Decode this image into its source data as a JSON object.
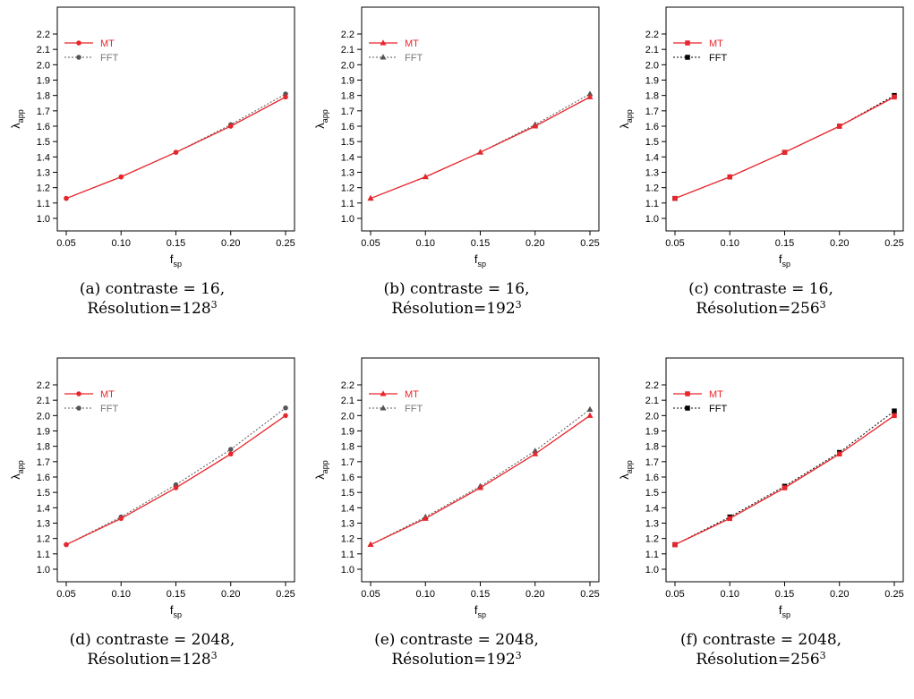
{
  "chart_data": [
    {
      "type": "line",
      "panel_label": "(a)",
      "caption": {
        "line1": "contraste = 16,",
        "line2": "Résolution=128",
        "exponent": "3"
      },
      "xlabel": "f",
      "xlabel_sub": "sp",
      "ylabel": "λ",
      "ylabel_sub": "app",
      "x": [
        0.05,
        0.1,
        0.15,
        0.2,
        0.25
      ],
      "x_ticks": [
        "0.05",
        "0.10",
        "0.15",
        "0.20",
        "0.25"
      ],
      "y_ticks": [
        "1.0",
        "1.1",
        "1.2",
        "1.3",
        "1.4",
        "1.5",
        "1.6",
        "1.7",
        "1.8",
        "1.9",
        "2.0",
        "2.1",
        "2.2"
      ],
      "xlim": [
        0.05,
        0.25
      ],
      "ylim": [
        1.0,
        2.2
      ],
      "marker": "circle",
      "legend_position": "top-left",
      "grid": false,
      "series": [
        {
          "name": "MT",
          "values": [
            1.13,
            1.27,
            1.43,
            1.6,
            1.79
          ],
          "color": "#e8252b",
          "dash": "solid",
          "label_color": "#e8252b"
        },
        {
          "name": "FFT",
          "values": [
            1.13,
            1.27,
            1.43,
            1.61,
            1.81
          ],
          "color": "#555555",
          "dash": "dotted",
          "label_color": "#777777"
        }
      ]
    },
    {
      "type": "line",
      "panel_label": "(b)",
      "caption": {
        "line1": "contraste = 16,",
        "line2": "Résolution=192",
        "exponent": "3"
      },
      "xlabel": "f",
      "xlabel_sub": "sp",
      "ylabel": "λ",
      "ylabel_sub": "app",
      "x": [
        0.05,
        0.1,
        0.15,
        0.2,
        0.25
      ],
      "x_ticks": [
        "0.05",
        "0.10",
        "0.15",
        "0.20",
        "0.25"
      ],
      "y_ticks": [
        "1.0",
        "1.1",
        "1.2",
        "1.3",
        "1.4",
        "1.5",
        "1.6",
        "1.7",
        "1.8",
        "1.9",
        "2.0",
        "2.1",
        "2.2"
      ],
      "xlim": [
        0.05,
        0.25
      ],
      "ylim": [
        1.0,
        2.2
      ],
      "marker": "triangle",
      "legend_position": "top-left",
      "grid": false,
      "series": [
        {
          "name": "MT",
          "values": [
            1.13,
            1.27,
            1.43,
            1.6,
            1.79
          ],
          "color": "#e8252b",
          "dash": "solid",
          "label_color": "#e8252b"
        },
        {
          "name": "FFT",
          "values": [
            1.13,
            1.27,
            1.43,
            1.61,
            1.81
          ],
          "color": "#555555",
          "dash": "dotted",
          "label_color": "#777777"
        }
      ]
    },
    {
      "type": "line",
      "panel_label": "(c)",
      "caption": {
        "line1": "contraste = 16,",
        "line2": "Résolution=256",
        "exponent": "3"
      },
      "xlabel": "f",
      "xlabel_sub": "sp",
      "ylabel": "λ",
      "ylabel_sub": "app",
      "x": [
        0.05,
        0.1,
        0.15,
        0.2,
        0.25
      ],
      "x_ticks": [
        "0.05",
        "0.10",
        "0.15",
        "0.20",
        "0.25"
      ],
      "y_ticks": [
        "1.0",
        "1.1",
        "1.2",
        "1.3",
        "1.4",
        "1.5",
        "1.6",
        "1.7",
        "1.8",
        "1.9",
        "2.0",
        "2.1",
        "2.2"
      ],
      "xlim": [
        0.05,
        0.25
      ],
      "ylim": [
        1.0,
        2.2
      ],
      "marker": "square",
      "legend_position": "top-left",
      "grid": false,
      "series": [
        {
          "name": "MT",
          "values": [
            1.13,
            1.27,
            1.43,
            1.6,
            1.79
          ],
          "color": "#e8252b",
          "dash": "solid",
          "label_color": "#e8252b"
        },
        {
          "name": "FFT",
          "values": [
            1.13,
            1.27,
            1.43,
            1.6,
            1.8
          ],
          "color": "#000000",
          "dash": "dotted",
          "label_color": "#000000"
        }
      ]
    },
    {
      "type": "line",
      "panel_label": "(d)",
      "caption": {
        "line1": "contraste = 2048,",
        "line2": "Résolution=128",
        "exponent": "3"
      },
      "xlabel": "f",
      "xlabel_sub": "sp",
      "ylabel": "λ",
      "ylabel_sub": "app",
      "x": [
        0.05,
        0.1,
        0.15,
        0.2,
        0.25
      ],
      "x_ticks": [
        "0.05",
        "0.10",
        "0.15",
        "0.20",
        "0.25"
      ],
      "y_ticks": [
        "1.0",
        "1.1",
        "1.2",
        "1.3",
        "1.4",
        "1.5",
        "1.6",
        "1.7",
        "1.8",
        "1.9",
        "2.0",
        "2.1",
        "2.2"
      ],
      "xlim": [
        0.05,
        0.25
      ],
      "ylim": [
        1.0,
        2.2
      ],
      "marker": "circle",
      "legend_position": "top-left",
      "grid": false,
      "series": [
        {
          "name": "MT",
          "values": [
            1.16,
            1.33,
            1.53,
            1.75,
            2.0
          ],
          "color": "#e8252b",
          "dash": "solid",
          "label_color": "#e8252b"
        },
        {
          "name": "FFT",
          "values": [
            1.16,
            1.34,
            1.55,
            1.78,
            2.05
          ],
          "color": "#555555",
          "dash": "dotted",
          "label_color": "#777777"
        }
      ]
    },
    {
      "type": "line",
      "panel_label": "(e)",
      "caption": {
        "line1": "contraste = 2048,",
        "line2": "Résolution=192",
        "exponent": "3"
      },
      "xlabel": "f",
      "xlabel_sub": "sp",
      "ylabel": "λ",
      "ylabel_sub": "app",
      "x": [
        0.05,
        0.1,
        0.15,
        0.2,
        0.25
      ],
      "x_ticks": [
        "0.05",
        "0.10",
        "0.15",
        "0.20",
        "0.25"
      ],
      "y_ticks": [
        "1.0",
        "1.1",
        "1.2",
        "1.3",
        "1.4",
        "1.5",
        "1.6",
        "1.7",
        "1.8",
        "1.9",
        "2.0",
        "2.1",
        "2.2"
      ],
      "xlim": [
        0.05,
        0.25
      ],
      "ylim": [
        1.0,
        2.2
      ],
      "marker": "triangle",
      "legend_position": "top-left",
      "grid": false,
      "series": [
        {
          "name": "MT",
          "values": [
            1.16,
            1.33,
            1.53,
            1.75,
            2.0
          ],
          "color": "#e8252b",
          "dash": "solid",
          "label_color": "#e8252b"
        },
        {
          "name": "FFT",
          "values": [
            1.16,
            1.34,
            1.54,
            1.77,
            2.04
          ],
          "color": "#555555",
          "dash": "dotted",
          "label_color": "#777777"
        }
      ]
    },
    {
      "type": "line",
      "panel_label": "(f)",
      "caption": {
        "line1": "contraste = 2048,",
        "line2": "Résolution=256",
        "exponent": "3"
      },
      "xlabel": "f",
      "xlabel_sub": "sp",
      "ylabel": "λ",
      "ylabel_sub": "app",
      "x": [
        0.05,
        0.1,
        0.15,
        0.2,
        0.25
      ],
      "x_ticks": [
        "0.05",
        "0.10",
        "0.15",
        "0.20",
        "0.25"
      ],
      "y_ticks": [
        "1.0",
        "1.1",
        "1.2",
        "1.3",
        "1.4",
        "1.5",
        "1.6",
        "1.7",
        "1.8",
        "1.9",
        "2.0",
        "2.1",
        "2.2"
      ],
      "xlim": [
        0.05,
        0.25
      ],
      "ylim": [
        1.0,
        2.2
      ],
      "marker": "square",
      "legend_position": "top-left",
      "grid": false,
      "series": [
        {
          "name": "MT",
          "values": [
            1.16,
            1.33,
            1.53,
            1.75,
            2.0
          ],
          "color": "#e8252b",
          "dash": "solid",
          "label_color": "#e8252b"
        },
        {
          "name": "FFT",
          "values": [
            1.16,
            1.34,
            1.54,
            1.76,
            2.03
          ],
          "color": "#000000",
          "dash": "dotted",
          "label_color": "#000000"
        }
      ]
    }
  ]
}
